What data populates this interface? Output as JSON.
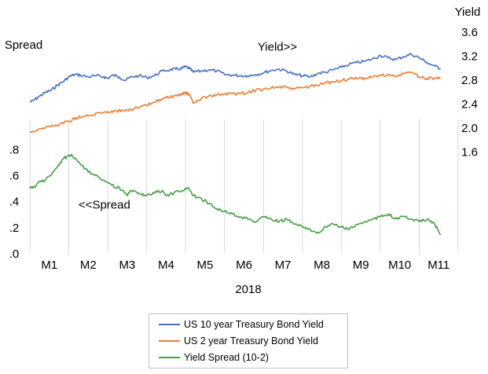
{
  "chart_data": {
    "type": "line",
    "title": "",
    "xlabel": "2018",
    "x_tick_labels": [
      "M1",
      "M2",
      "M3",
      "M4",
      "M5",
      "M6",
      "M7",
      "M8",
      "M9",
      "M10",
      "M11"
    ],
    "y_left_label": "Spread",
    "y_right_label": "Yield",
    "y_left_ticks": [
      ".0",
      ".2",
      ".4",
      ".6",
      ".8"
    ],
    "y_left_tick_values": [
      0.0,
      0.2,
      0.4,
      0.6,
      0.8
    ],
    "y_right_ticks": [
      "1.6",
      "2.0",
      "2.4",
      "2.8",
      "3.2",
      "3.6"
    ],
    "y_right_tick_values": [
      1.6,
      2.0,
      2.4,
      2.8,
      3.2,
      3.6
    ],
    "y_left_range": [
      0.0,
      1.7
    ],
    "y_right_range": [
      -0.1,
      3.6
    ],
    "x_range": [
      1,
      12
    ],
    "grid": "vertical",
    "legend_position": "bottom",
    "annotations": [
      {
        "text": "Yield>>",
        "x": 6.85,
        "y": 3.28,
        "axis": "right"
      },
      {
        "text": "<<Spread",
        "x": 2.25,
        "y": 0.34,
        "axis": "left"
      }
    ],
    "series": [
      {
        "name": "US 10 year Treasury Bond Yield",
        "color": "#4472c4",
        "axis": "right",
        "x": [
          1.0,
          1.1,
          1.25,
          1.4,
          1.55,
          1.7,
          1.85,
          2.0,
          2.15,
          2.3,
          2.5,
          2.7,
          2.9,
          3.0,
          3.15,
          3.3,
          3.45,
          3.6,
          3.8,
          4.0,
          4.2,
          4.4,
          4.6,
          4.75,
          4.9,
          5.0,
          5.1,
          5.2,
          5.4,
          5.6,
          5.8,
          6.0,
          6.2,
          6.4,
          6.6,
          6.8,
          7.0,
          7.2,
          7.4,
          7.6,
          7.8,
          8.0,
          8.2,
          8.4,
          8.6,
          8.8,
          9.0,
          9.2,
          9.4,
          9.6,
          9.8,
          10.0,
          10.2,
          10.4,
          10.6,
          10.8,
          11.0,
          11.2,
          11.4,
          11.55
        ],
        "y": [
          2.42,
          2.45,
          2.52,
          2.58,
          2.62,
          2.7,
          2.76,
          2.84,
          2.88,
          2.87,
          2.84,
          2.86,
          2.84,
          2.82,
          2.87,
          2.84,
          2.78,
          2.84,
          2.86,
          2.83,
          2.86,
          2.94,
          2.96,
          2.97,
          2.98,
          3.01,
          2.98,
          2.92,
          2.94,
          2.96,
          2.94,
          2.88,
          2.87,
          2.86,
          2.86,
          2.88,
          2.91,
          2.95,
          2.97,
          2.94,
          2.88,
          2.86,
          2.84,
          2.9,
          2.92,
          2.96,
          3.0,
          3.05,
          3.08,
          3.1,
          3.14,
          3.2,
          3.16,
          3.13,
          3.18,
          3.22,
          3.16,
          3.08,
          3.02,
          2.98
        ]
      },
      {
        "name": "US 2 year Treasury Bond Yield",
        "color": "#ed7d31",
        "axis": "right",
        "x": [
          1.0,
          1.2,
          1.4,
          1.6,
          1.8,
          2.0,
          2.2,
          2.4,
          2.6,
          2.8,
          3.0,
          3.2,
          3.4,
          3.6,
          3.8,
          4.0,
          4.2,
          4.4,
          4.6,
          4.8,
          4.9,
          5.0,
          5.1,
          5.2,
          5.4,
          5.6,
          5.8,
          6.0,
          6.2,
          6.4,
          6.6,
          6.8,
          7.0,
          7.2,
          7.4,
          7.6,
          7.8,
          8.0,
          8.2,
          8.4,
          8.6,
          8.8,
          9.0,
          9.2,
          9.4,
          9.6,
          9.8,
          10.0,
          10.2,
          10.4,
          10.6,
          10.8,
          11.0,
          11.2,
          11.4,
          11.55
        ],
        "y": [
          1.92,
          1.96,
          2.0,
          2.02,
          2.06,
          2.1,
          2.16,
          2.18,
          2.2,
          2.24,
          2.26,
          2.27,
          2.28,
          2.3,
          2.33,
          2.36,
          2.42,
          2.48,
          2.5,
          2.52,
          2.55,
          2.58,
          2.54,
          2.4,
          2.48,
          2.52,
          2.54,
          2.55,
          2.56,
          2.56,
          2.58,
          2.62,
          2.64,
          2.66,
          2.67,
          2.66,
          2.64,
          2.66,
          2.68,
          2.7,
          2.74,
          2.76,
          2.78,
          2.8,
          2.81,
          2.82,
          2.84,
          2.86,
          2.88,
          2.84,
          2.9,
          2.92,
          2.84,
          2.82,
          2.82,
          2.82
        ]
      },
      {
        "name": "Yield Spread (10-2)",
        "color": "#44a043",
        "axis": "left",
        "x": [
          1.0,
          1.1,
          1.25,
          1.4,
          1.55,
          1.7,
          1.85,
          2.0,
          2.1,
          2.3,
          2.5,
          2.7,
          2.9,
          3.1,
          3.3,
          3.5,
          3.6,
          3.8,
          4.0,
          4.2,
          4.4,
          4.5,
          4.7,
          4.9,
          5.05,
          5.2,
          5.4,
          5.6,
          5.8,
          6.0,
          6.2,
          6.4,
          6.6,
          6.8,
          7.0,
          7.2,
          7.4,
          7.6,
          7.8,
          8.0,
          8.2,
          8.4,
          8.6,
          8.8,
          9.0,
          9.2,
          9.4,
          9.6,
          9.8,
          10.0,
          10.2,
          10.4,
          10.6,
          10.8,
          11.0,
          11.2,
          11.4,
          11.55
        ],
        "y": [
          0.51,
          0.5,
          0.55,
          0.56,
          0.6,
          0.66,
          0.72,
          0.75,
          0.74,
          0.68,
          0.62,
          0.6,
          0.56,
          0.52,
          0.5,
          0.44,
          0.48,
          0.46,
          0.44,
          0.46,
          0.48,
          0.44,
          0.46,
          0.48,
          0.5,
          0.44,
          0.42,
          0.38,
          0.34,
          0.32,
          0.3,
          0.28,
          0.26,
          0.24,
          0.28,
          0.26,
          0.24,
          0.26,
          0.22,
          0.2,
          0.18,
          0.16,
          0.2,
          0.22,
          0.2,
          0.18,
          0.22,
          0.24,
          0.26,
          0.28,
          0.3,
          0.26,
          0.28,
          0.26,
          0.24,
          0.26,
          0.22,
          0.14
        ]
      }
    ]
  }
}
